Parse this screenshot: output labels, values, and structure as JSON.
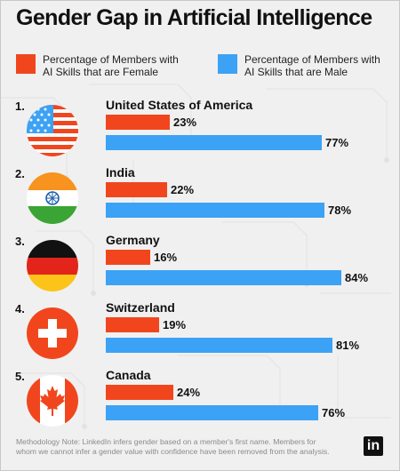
{
  "title": "Gender Gap in Artificial Intelligence",
  "legend": {
    "female": "Percentage of Members with AI Skills that are Female",
    "male": "Percentage of Members with AI Skills that are Male"
  },
  "colors": {
    "female": "#f1461d",
    "male": "#3ca2f5"
  },
  "chart_data": {
    "type": "bar",
    "title": "Gender Gap in Artificial Intelligence",
    "orientation": "horizontal",
    "categories": [
      "United States of America",
      "India",
      "Germany",
      "Switzerland",
      "Canada"
    ],
    "ranks": [
      "1.",
      "2.",
      "3.",
      "4.",
      "5."
    ],
    "flags": [
      "us-flag-icon",
      "india-flag-icon",
      "germany-flag-icon",
      "switzerland-flag-icon",
      "canada-flag-icon"
    ],
    "unit": "%",
    "series": [
      {
        "name": "Percentage of Members with AI Skills that are Female",
        "values": [
          23,
          22,
          16,
          19,
          24
        ]
      },
      {
        "name": "Percentage of Members with AI Skills that are Male",
        "values": [
          77,
          78,
          84,
          81,
          76
        ]
      }
    ],
    "legend_position": "top",
    "grid": false
  },
  "footnote": "Methodology Note: LinkedIn infers gender based on a member's first name. Members for whom we cannot infer a gender value with confidence have been removed from the analysis.",
  "brand": "in"
}
